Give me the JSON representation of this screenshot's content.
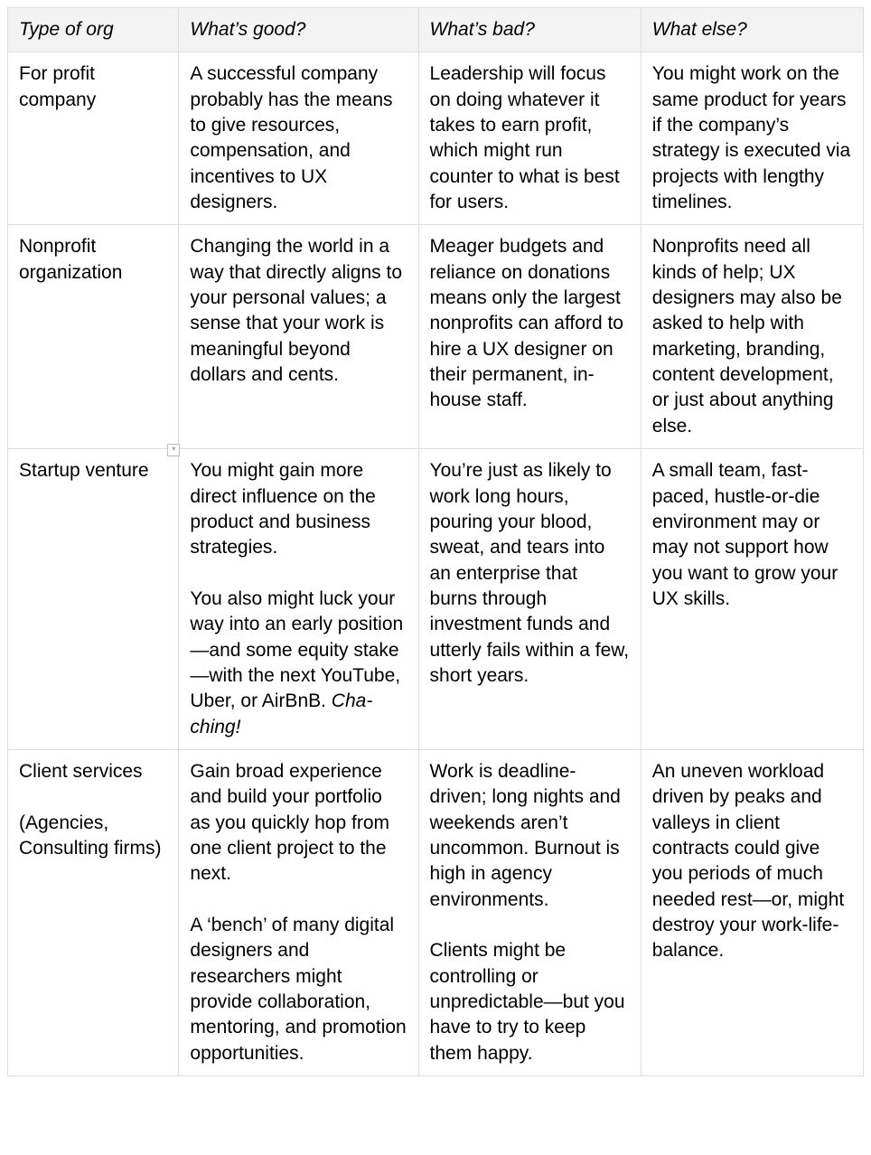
{
  "table": {
    "type": "table",
    "background_color": "#ffffff",
    "border_color": "#dddddd",
    "header_background_color": "#f3f3f3",
    "text_color": "#000000",
    "font_family": "Arial",
    "font_size_pt": 16,
    "header_font_style": "italic",
    "column_widths_pct": [
      20,
      28,
      26,
      26
    ],
    "columns": [
      {
        "key": "type_of_org",
        "label": "Type of org"
      },
      {
        "key": "whats_good",
        "label": "What’s good?"
      },
      {
        "key": "whats_bad",
        "label": "What’s bad?"
      },
      {
        "key": "what_else",
        "label": "What else?"
      }
    ],
    "rows": [
      {
        "type_of_org": "For profit company",
        "whats_good": "A successful company probably has the means to give resources, compensation, and incentives to UX designers.",
        "whats_bad": "Leadership will focus on doing whatever it takes to earn profit, which might run counter to what is best for users.",
        "what_else": "You might work on the same product for years if the company’s strategy is executed via projects with lengthy timelines."
      },
      {
        "type_of_org": "Nonprofit organization",
        "whats_good": "Changing the world in a way that directly aligns to your personal values; a sense that your work is meaningful beyond dollars and cents.",
        "whats_bad": "Meager budgets and reliance on donations means only the largest nonprofits can afford to hire a UX designer on their permanent, in-house staff.",
        "what_else": "Nonprofits need all kinds of help; UX designers may also be asked to help with marketing, branding, content development, or just about anything else."
      },
      {
        "type_of_org": "Startup venture",
        "has_marker": true,
        "whats_good_html": "You might gain more direct influence on the product and business strategies.\n\nYou also might luck your way into an early position—and some equity stake—with the next YouTube, Uber, or AirBnB. <em>Cha-ching!</em>",
        "whats_bad": "You’re just as likely to work long hours, pouring your blood, sweat, and tears into an enterprise that burns through investment funds and utterly fails within a few, short years.",
        "what_else": "A small team, fast-paced, hustle-or-die environment may or may not support how you want to grow your UX skills."
      },
      {
        "type_of_org": "Client services\n\n(Agencies, Consulting firms)",
        "whats_good": "Gain broad experience and build your portfolio as you quickly hop from one client project to the next.\n\nA ‘bench’ of many digital designers and researchers might provide collaboration, mentoring, and promotion opportunities.",
        "whats_bad": "Work is deadline-driven; long nights and weekends aren’t uncommon. Burnout is high in agency environments.\n\nClients might be controlling or unpredictable—but you have to try to keep them happy.",
        "what_else": "An uneven workload driven by peaks and valleys in client contracts could give you periods of much needed rest—or, might destroy your work-life-balance."
      }
    ]
  }
}
